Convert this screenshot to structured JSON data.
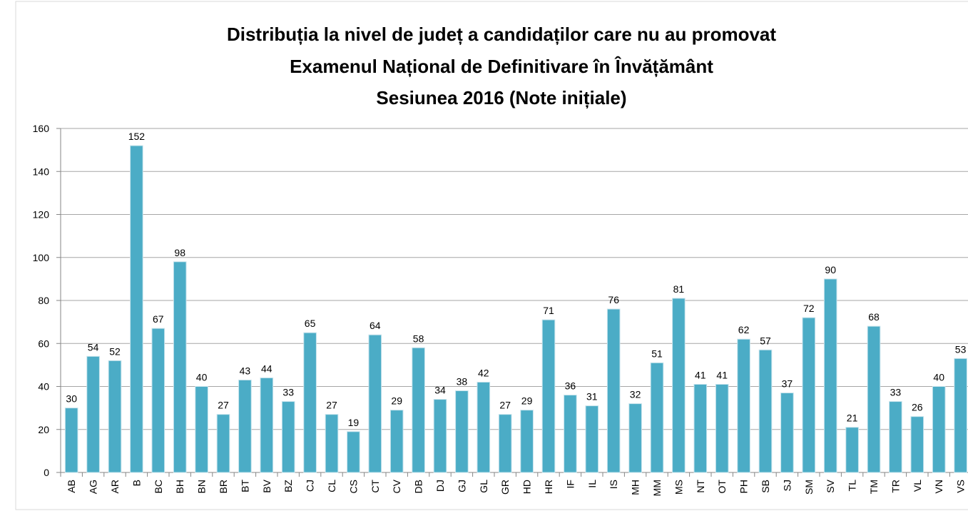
{
  "chart_data": {
    "type": "bar",
    "title": [
      "Distribuția la nivel de județ a candidaților care nu au promovat",
      "Examenul Național de Definitivare în Învățământ",
      "Sesiunea 2016 (Note inițiale)"
    ],
    "categories": [
      "AB",
      "AG",
      "AR",
      "B",
      "BC",
      "BH",
      "BN",
      "BR",
      "BT",
      "BV",
      "BZ",
      "CJ",
      "CL",
      "CS",
      "CT",
      "CV",
      "DB",
      "DJ",
      "GJ",
      "GL",
      "GR",
      "HD",
      "HR",
      "IF",
      "IL",
      "IS",
      "MH",
      "MM",
      "MS",
      "NT",
      "OT",
      "PH",
      "SB",
      "SJ",
      "SM",
      "SV",
      "TL",
      "TM",
      "TR",
      "VL",
      "VN",
      "VS"
    ],
    "values": [
      30,
      54,
      52,
      152,
      67,
      98,
      40,
      27,
      43,
      44,
      33,
      65,
      27,
      19,
      64,
      29,
      58,
      34,
      38,
      42,
      27,
      29,
      71,
      36,
      31,
      76,
      32,
      51,
      81,
      41,
      41,
      62,
      57,
      37,
      72,
      90,
      21,
      68,
      33,
      26,
      40,
      53
    ],
    "color": "#4bacc6",
    "ylim": [
      0,
      160
    ],
    "yticks": [
      0,
      20,
      40,
      60,
      80,
      100,
      120,
      140,
      160
    ],
    "grid": true
  }
}
